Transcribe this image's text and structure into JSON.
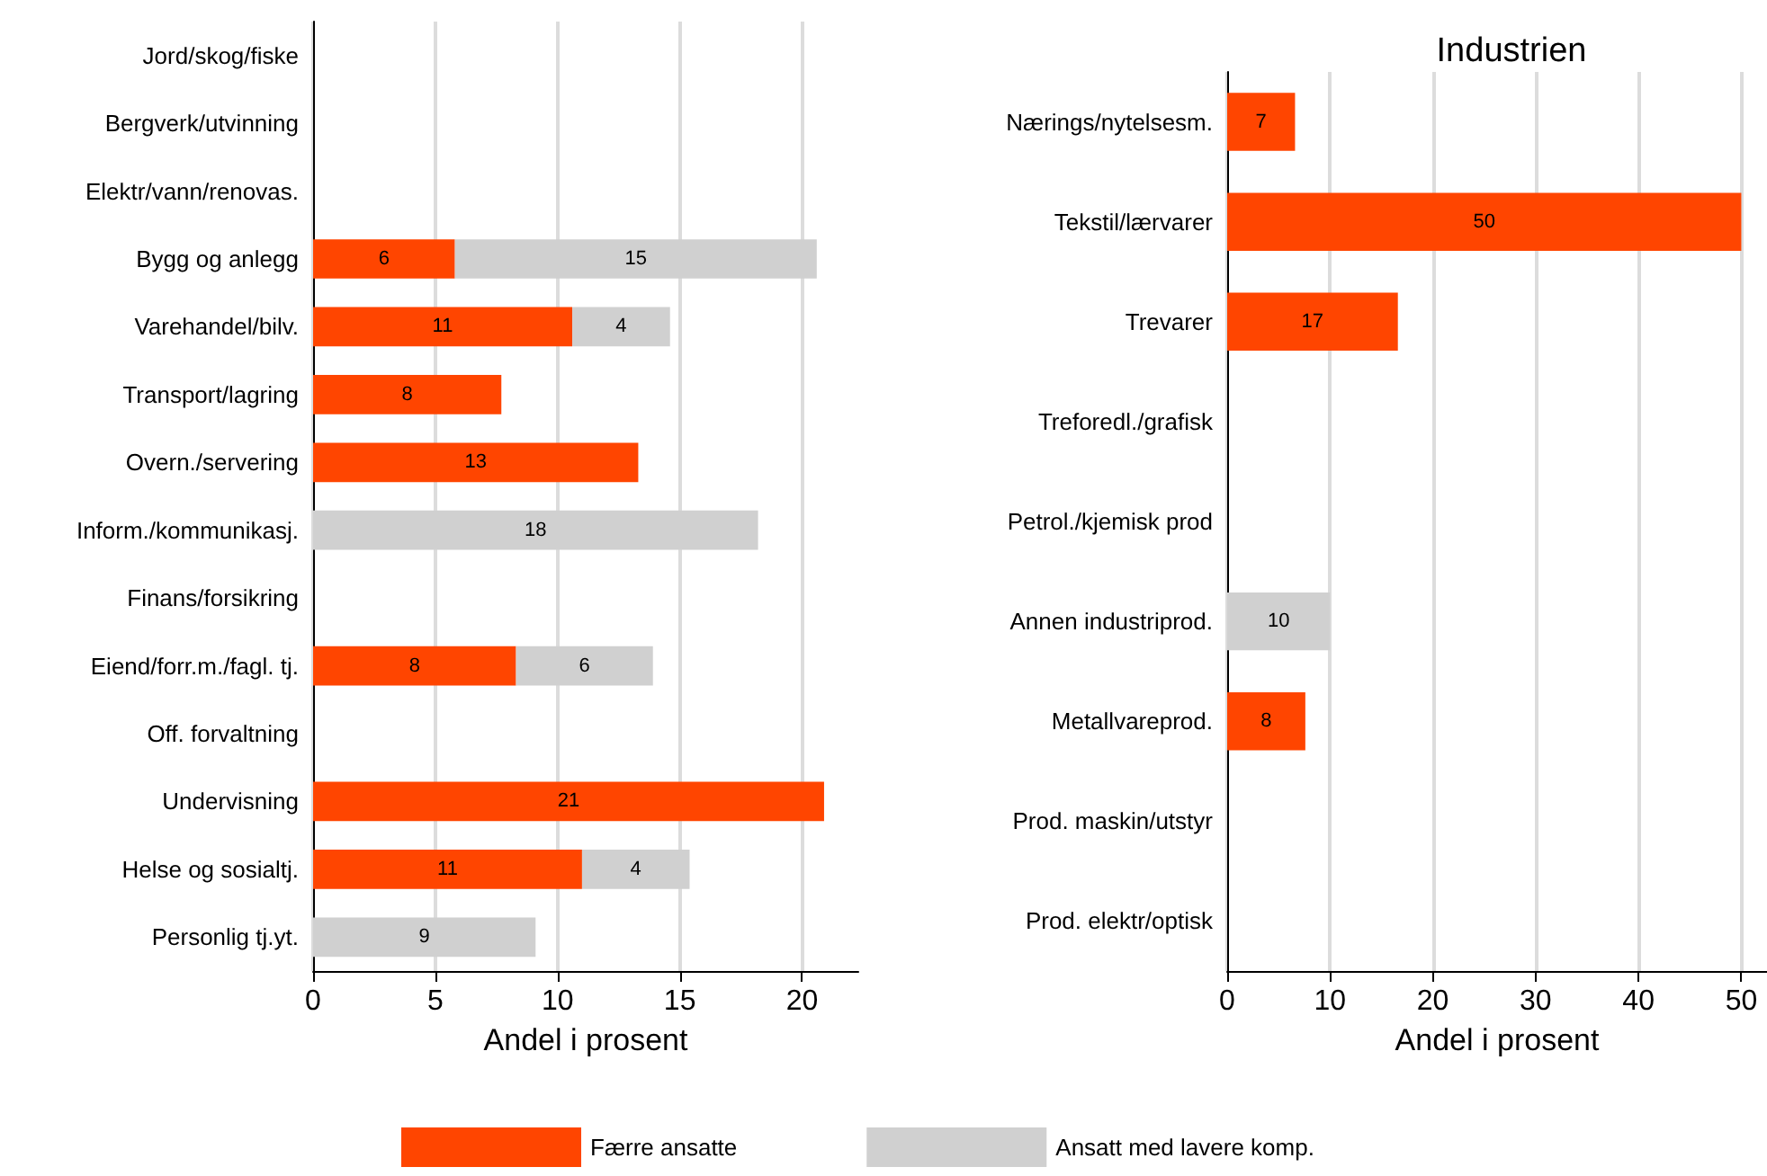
{
  "chart_data": [
    {
      "type": "bar",
      "orientation": "horizontal",
      "stacked": true,
      "xlabel": "Andel i prosent",
      "categories": [
        "Jord/skog/fiske",
        "Bergverk/utvinning",
        "Elektr/vann/renovas.",
        "Bygg og anlegg",
        "Varehandel/bilv.",
        "Transport/lagring",
        "Overn./servering",
        "Inform./kommunikasj.",
        "Finans/forsikring",
        "Eiend/forr.m./fagl. tj.",
        "Off. forvaltning",
        "Undervisning",
        "Helse og sosialtj.",
        "Personlig tj.yt."
      ],
      "xlim": [
        0,
        22.3
      ],
      "xticks": [
        0,
        5,
        10,
        15,
        20
      ],
      "grid": "x",
      "legend": "bottom",
      "series": [
        {
          "name": "Færre ansatte",
          "color": "#ff4500",
          "values": [
            null,
            null,
            null,
            5.8,
            10.6,
            7.7,
            13.3,
            null,
            null,
            8.3,
            null,
            20.9,
            11.0,
            null
          ],
          "value_labels": [
            null,
            null,
            null,
            "6",
            "11",
            "8",
            "13",
            null,
            null,
            "8",
            null,
            "21",
            "11",
            null
          ]
        },
        {
          "name": "Ansatt med lavere komp.",
          "color": "#d0d0d0",
          "values": [
            null,
            null,
            null,
            14.8,
            4.0,
            null,
            null,
            18.2,
            null,
            5.6,
            null,
            null,
            4.4,
            9.1
          ],
          "value_labels": [
            null,
            null,
            null,
            "15",
            "4",
            null,
            null,
            "18",
            null,
            "6",
            null,
            null,
            "4",
            "9"
          ]
        }
      ]
    },
    {
      "type": "bar",
      "orientation": "horizontal",
      "stacked": true,
      "title": "Industrien",
      "xlabel": "Andel i prosent",
      "categories": [
        "Nærings/nytelsesm.",
        "Tekstil/lærvarer",
        "Trevarer",
        "Treforedl./grafisk",
        "Petrol./kjemisk prod",
        "Annen industriprod.",
        "Metallvareprod.",
        "Prod. maskin/utstyr",
        "Prod. elektr/optisk"
      ],
      "xlim": [
        0,
        52.5
      ],
      "xticks": [
        0,
        10,
        20,
        30,
        40,
        50
      ],
      "grid": "x",
      "series": [
        {
          "color": "#ff4500",
          "values": [
            6.6,
            50,
            16.6,
            null,
            null,
            null,
            7.6,
            null,
            null
          ],
          "value_labels": [
            "7",
            "50",
            "17",
            null,
            null,
            null,
            "8",
            null,
            null
          ]
        },
        {
          "color": "#d0d0d0",
          "values": [
            null,
            null,
            null,
            null,
            null,
            10,
            null,
            null,
            null
          ],
          "value_labels": [
            null,
            null,
            null,
            null,
            null,
            "10",
            null,
            null,
            null
          ]
        }
      ]
    }
  ]
}
